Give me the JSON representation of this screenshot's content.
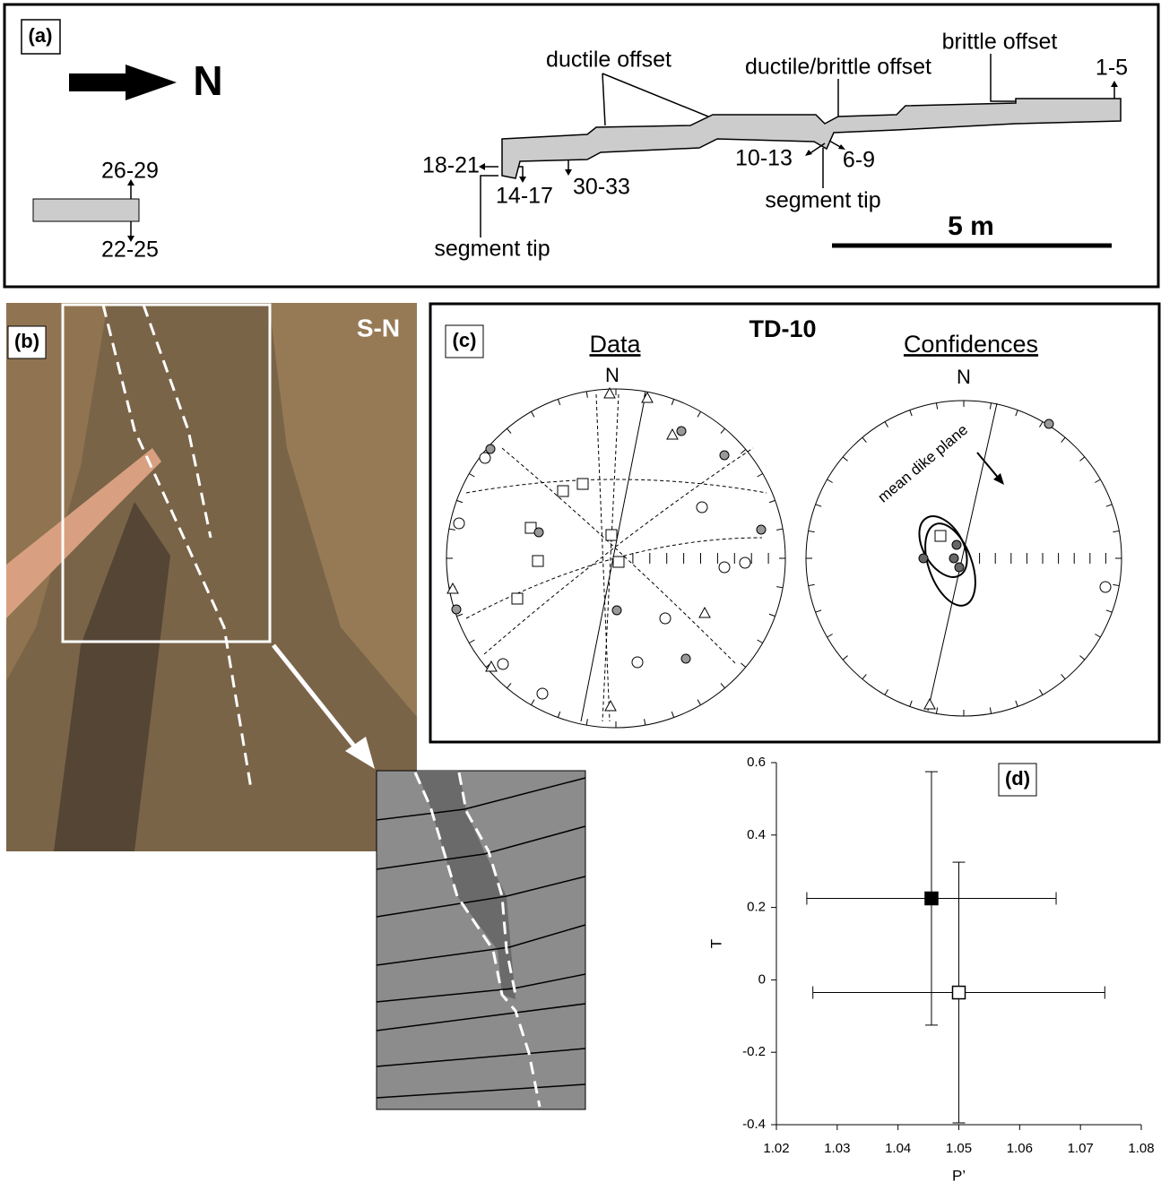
{
  "panel_a": {
    "label": "(a)",
    "north": "N",
    "annotations": [
      "ductile offset",
      "ductile/brittle offset",
      "brittle offset",
      "segment tip",
      "segment tip"
    ],
    "sample_labels": [
      "1-5",
      "26-29",
      "22-25",
      "18-21",
      "14-17",
      "30-33",
      "10-13",
      "6-9"
    ],
    "scale": "5 m"
  },
  "panel_b": {
    "label": "(b)",
    "orientation": "S-N"
  },
  "panel_c": {
    "label": "(c)",
    "title": "TD-10",
    "left_title": "Data",
    "right_title": "Confidences",
    "north_left": "N",
    "north_right": "N",
    "annotation": "mean dike plane"
  },
  "chart_data": {
    "type": "errorbar",
    "label": "(d)",
    "x_label": "P’",
    "y_label": "T",
    "xlim": [
      1.02,
      1.08
    ],
    "ylim": [
      -0.4,
      0.6
    ],
    "xticks": [
      1.02,
      1.03,
      1.04,
      1.05,
      1.06,
      1.07,
      1.08
    ],
    "yticks": [
      -0.4,
      -0.2,
      0,
      0.2,
      0.4,
      0.6
    ],
    "x": [
      1.0455,
      1.05
    ],
    "values": [
      0.225,
      -0.035
    ],
    "xerr": [
      0.0205,
      0.024
    ],
    "yerr": [
      0.35,
      0.36
    ],
    "colors": [
      "#000000",
      "#ffffff"
    ]
  }
}
